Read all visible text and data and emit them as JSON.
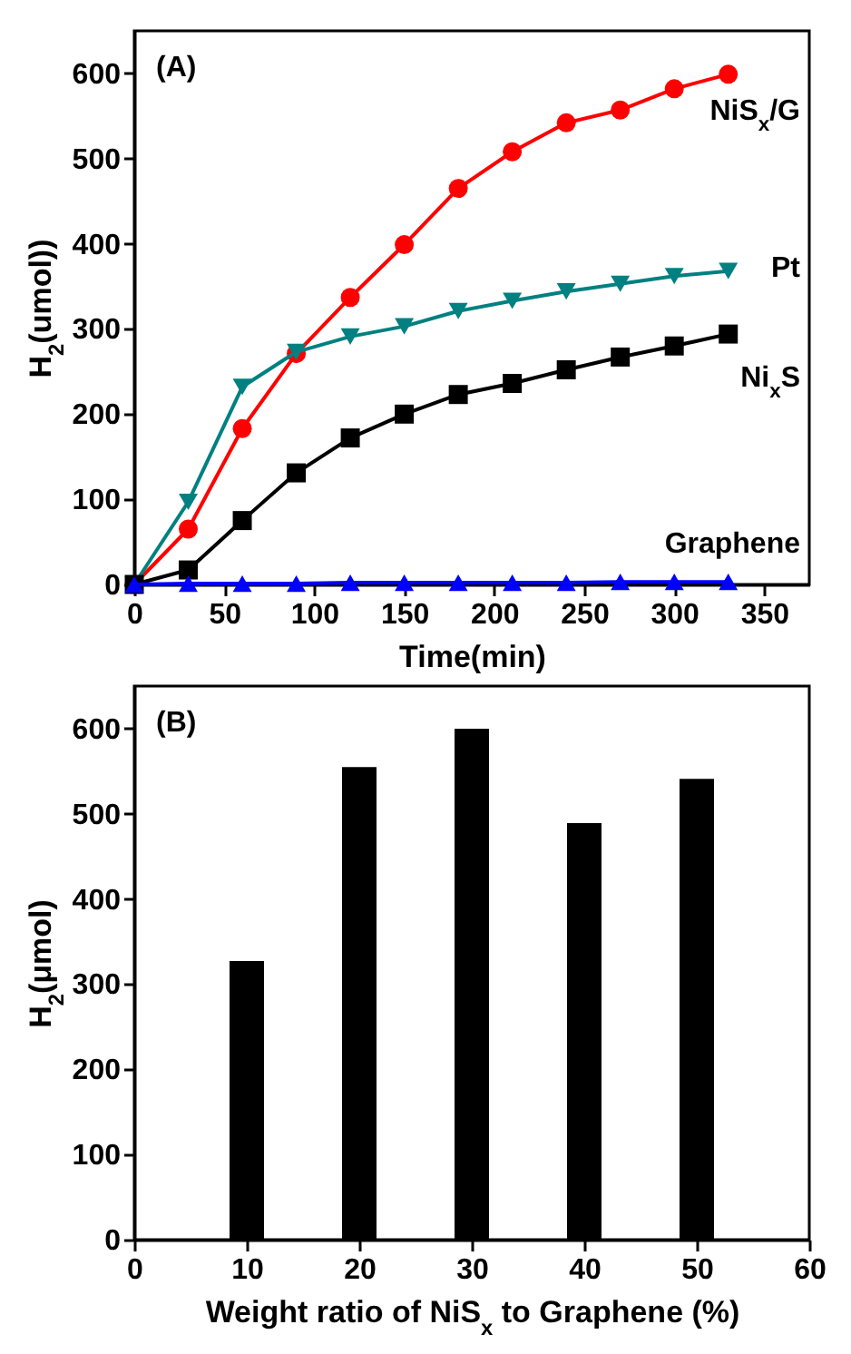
{
  "chart_data": [
    {
      "type": "line",
      "title": "(A)",
      "xlabel": "Time(min)",
      "ylabel": "H$_{2}$(umol))",
      "xlim": [
        0,
        375
      ],
      "xticks": [
        0,
        50,
        100,
        150,
        200,
        250,
        300,
        350
      ],
      "ylim": [
        0,
        650
      ],
      "yticks": [
        0,
        100,
        200,
        300,
        400,
        500,
        600
      ],
      "x": [
        0,
        30,
        60,
        90,
        120,
        150,
        180,
        210,
        240,
        270,
        300,
        330
      ],
      "series": [
        {
          "name": "NiS$_{x}$/G",
          "color": "#ff0000",
          "marker": "circle",
          "values": [
            0,
            65,
            183,
            271,
            337,
            399,
            465,
            508,
            542,
            557,
            582,
            599
          ]
        },
        {
          "name": "Pt",
          "color": "#008080",
          "marker": "triangle-down",
          "values": [
            0,
            97,
            232,
            273,
            291,
            303,
            321,
            333,
            344,
            353,
            362,
            368
          ]
        },
        {
          "name": "Ni$_{x}$S",
          "color": "#000000",
          "marker": "square",
          "values": [
            0,
            17,
            75,
            131,
            172,
            200,
            223,
            236,
            252,
            267,
            280,
            294
          ]
        },
        {
          "name": "Graphene",
          "color": "#0000ff",
          "marker": "triangle",
          "values": [
            0,
            1,
            1,
            1,
            2,
            2,
            2,
            2,
            2,
            3,
            3,
            3
          ]
        }
      ]
    },
    {
      "type": "bar",
      "title": "(B)",
      "xlabel": "Weight ratio of NiS$_{x}$ to Graphene (%)",
      "ylabel": "H$_{2}$(μmol)",
      "xlim": [
        0,
        60
      ],
      "xticks": [
        0,
        10,
        20,
        30,
        40,
        50,
        60
      ],
      "ylim": [
        0,
        650
      ],
      "yticks": [
        0,
        100,
        200,
        300,
        400,
        500,
        600
      ],
      "x": [
        10,
        20,
        30,
        40,
        50
      ],
      "values": [
        327,
        555,
        600,
        489,
        541
      ],
      "color": "#000000"
    }
  ]
}
